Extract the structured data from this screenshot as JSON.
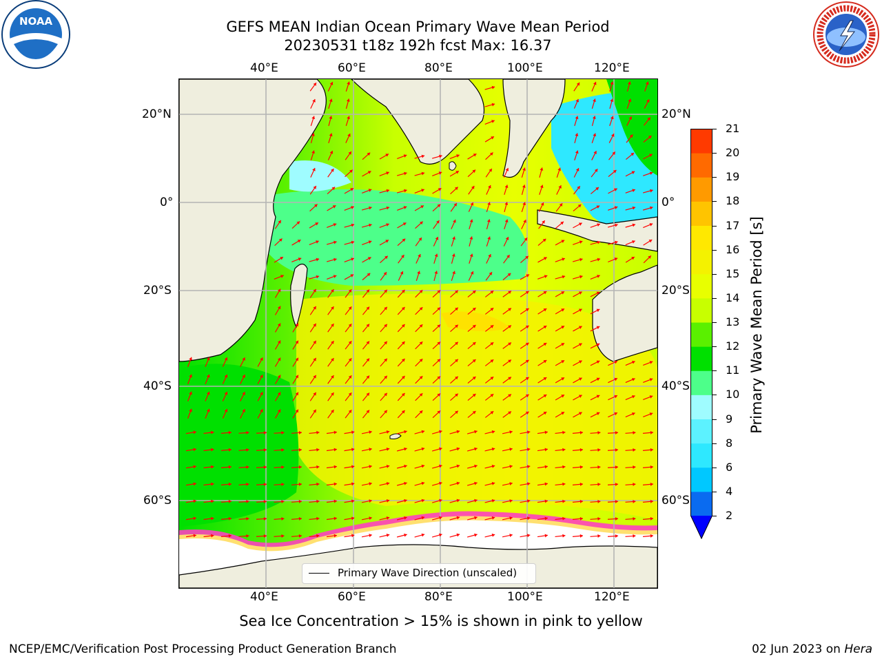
{
  "title": {
    "line1": "GEFS MEAN Indian Ocean Primary Wave Mean Period",
    "line2": "20230531 t18z 192h fcst   Max: 16.37"
  },
  "axes": {
    "lon_labels": [
      "40°E",
      "60°E",
      "80°E",
      "100°E",
      "120°E"
    ],
    "lat_labels_left": [
      "20°N",
      "0°",
      "20°S",
      "40°S",
      "60°S"
    ],
    "lat_labels_right": [
      "20°N",
      "0°",
      "20°S",
      "40°S",
      "60°S"
    ]
  },
  "legend": {
    "label": "Primary Wave Direction (unscaled)"
  },
  "colorbar": {
    "title": "Primary Wave Mean Period [s]",
    "ticks": [
      "2",
      "4",
      "6",
      "8",
      "9",
      "10",
      "11",
      "12",
      "13",
      "14",
      "15",
      "16",
      "17",
      "18",
      "19",
      "20",
      "21"
    ],
    "colors": [
      "#0a6bf0",
      "#00c8ff",
      "#2ee8ff",
      "#5cf2ff",
      "#9ffcff",
      "#4dff8a",
      "#00e000",
      "#5af000",
      "#c8ff00",
      "#e8ff00",
      "#f4f200",
      "#ffe800",
      "#ffc400",
      "#ff9a00",
      "#ff6a00",
      "#ff3a00",
      "#ff0f00"
    ],
    "under_color": "#0000ff"
  },
  "caption": "Sea Ice Concentration > 15% is shown in pink to yellow",
  "footer": {
    "left": "NCEP/EMC/Verification Post Processing Product Generation Branch",
    "date": "02 Jun 2023 on ",
    "host": "Hera"
  },
  "logos": {
    "noaa_text": "NOAA",
    "nws_text": "NATIONAL WEATHER SERVICE"
  },
  "map_colors": {
    "land": "#efeede",
    "ice": "#ffffff",
    "arrow": "#ff0000",
    "grid": "#b4b4b4",
    "ice_edge": "#ff40c0"
  }
}
